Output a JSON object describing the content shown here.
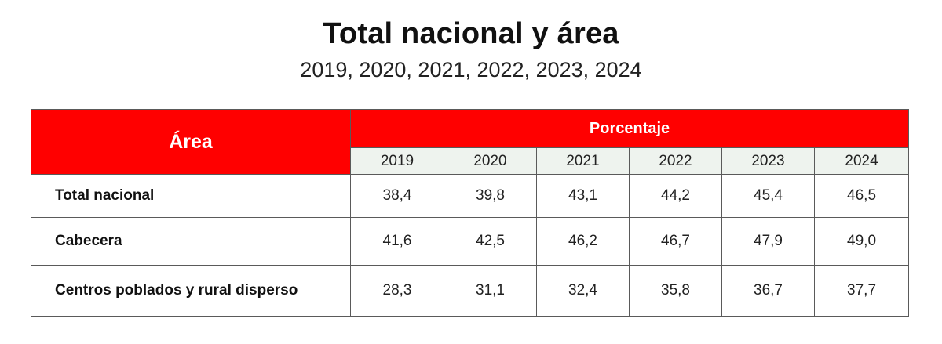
{
  "title": "Total nacional y área",
  "subtitle": "2019, 2020, 2021, 2022, 2023, 2024",
  "colors": {
    "header_red": "#ff0000",
    "year_row_bg": "#eef3ee",
    "border": "#5a5a5a"
  },
  "table": {
    "area_header": "Área",
    "percent_header": "Porcentaje",
    "years": [
      "2019",
      "2020",
      "2021",
      "2022",
      "2023",
      "2024"
    ],
    "rows": [
      {
        "label": "Total nacional",
        "values": [
          "38,4",
          "39,8",
          "43,1",
          "44,2",
          "45,4",
          "46,5"
        ]
      },
      {
        "label": "Cabecera",
        "values": [
          "41,6",
          "42,5",
          "46,2",
          "46,7",
          "47,9",
          "49,0"
        ]
      },
      {
        "label": "Centros poblados y rural disperso",
        "values": [
          "28,3",
          "31,1",
          "32,4",
          "35,8",
          "36,7",
          "37,7"
        ]
      }
    ]
  }
}
